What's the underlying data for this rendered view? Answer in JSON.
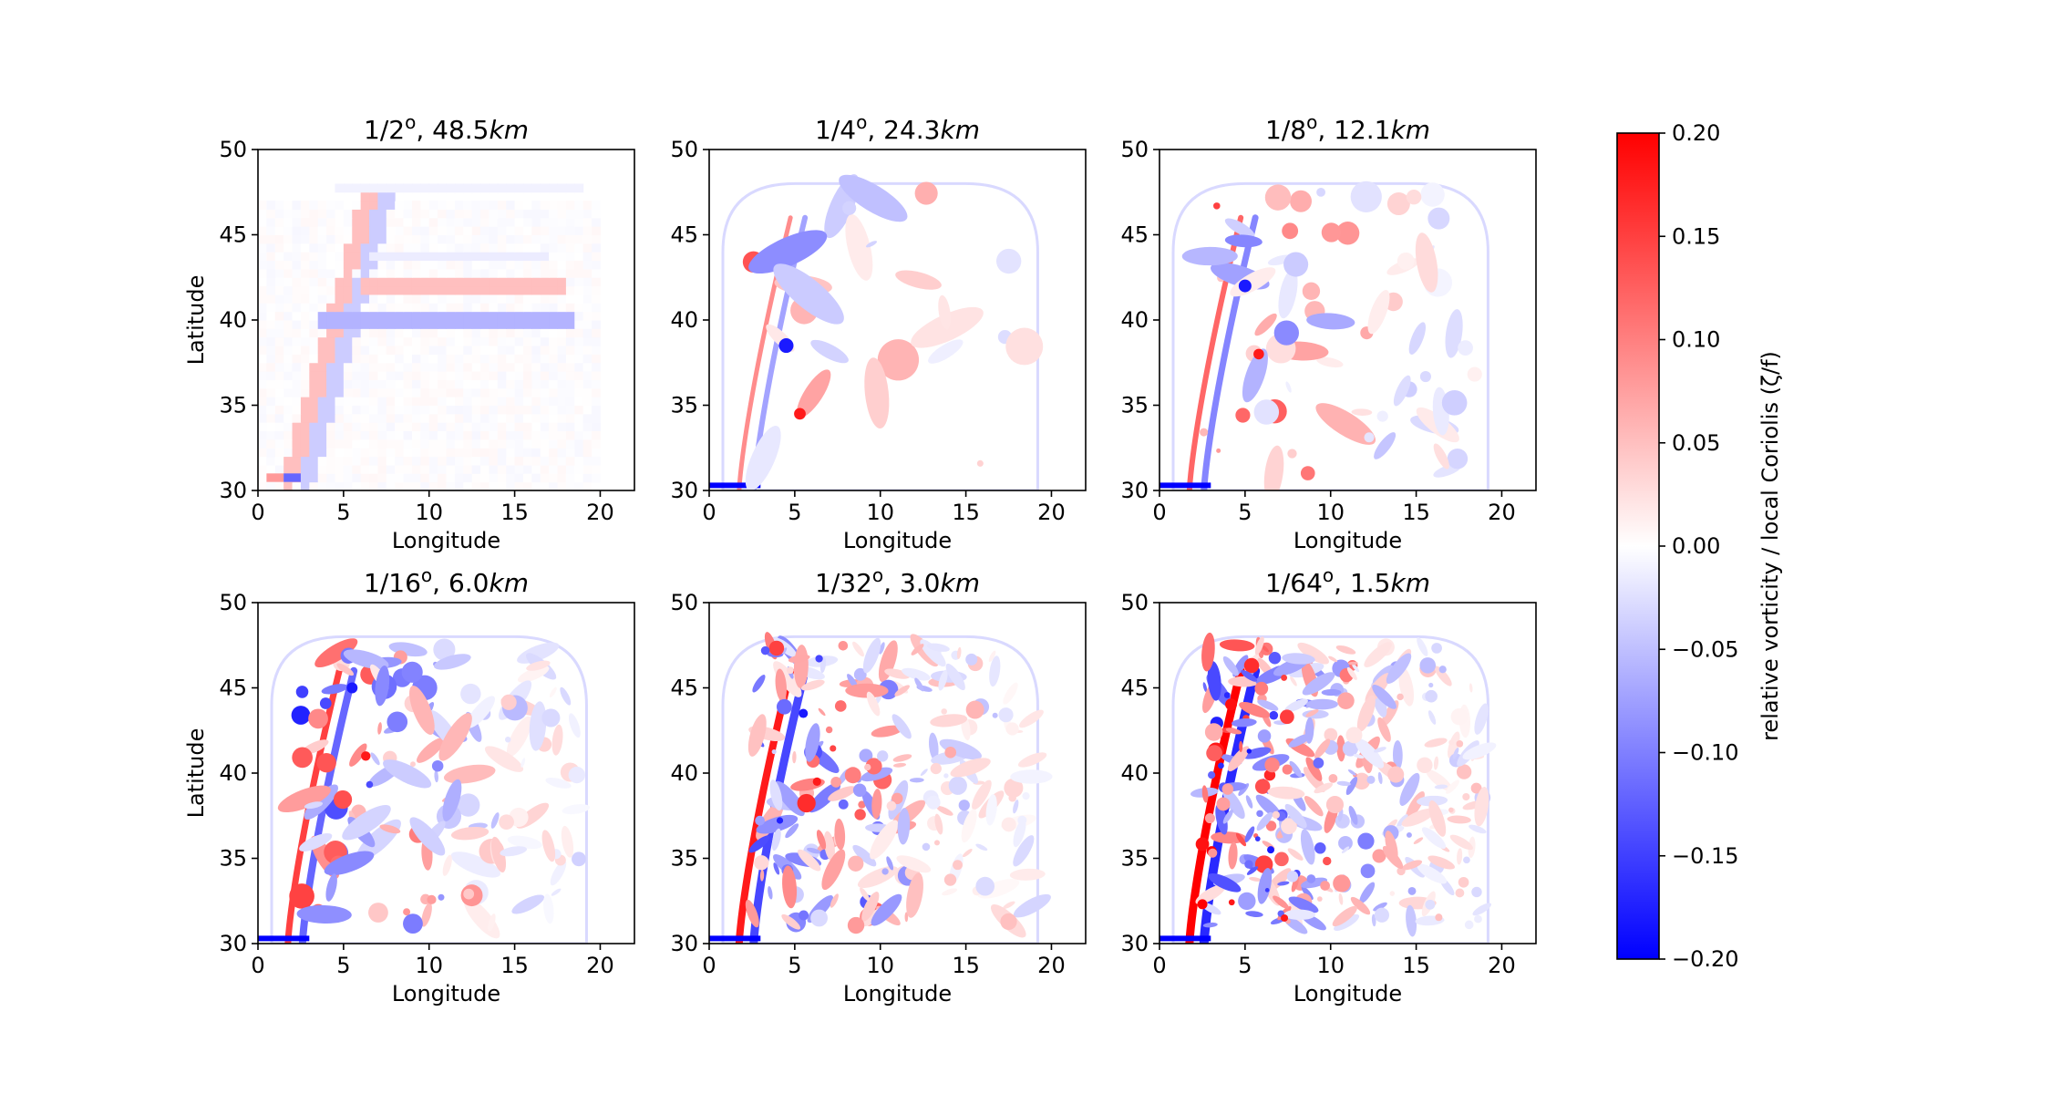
{
  "chart_data": {
    "type": "heatmap",
    "colormap": "bwr",
    "panels": [
      {
        "label_frac": "1/2",
        "label_sup": "o",
        "label_rest": ", 48.5",
        "label_unit": "km",
        "resolution_deg": 0.5,
        "resolution_km": 48.5,
        "detail": 0
      },
      {
        "label_frac": "1/4",
        "label_sup": "o",
        "label_rest": ", 24.3",
        "label_unit": "km",
        "resolution_deg": 0.25,
        "resolution_km": 24.3,
        "detail": 1
      },
      {
        "label_frac": "1/8",
        "label_sup": "o",
        "label_rest": ", 12.1",
        "label_unit": "km",
        "resolution_deg": 0.125,
        "resolution_km": 12.1,
        "detail": 2
      },
      {
        "label_frac": "1/16",
        "label_sup": "o",
        "label_rest": ", 6.0",
        "label_unit": "km",
        "resolution_deg": 0.0625,
        "resolution_km": 6.0,
        "detail": 3
      },
      {
        "label_frac": "1/32",
        "label_sup": "o",
        "label_rest": ", 3.0",
        "label_unit": "km",
        "resolution_deg": 0.03125,
        "resolution_km": 3.0,
        "detail": 4
      },
      {
        "label_frac": "1/64",
        "label_sup": "o",
        "label_rest": ", 1.5",
        "label_unit": "km",
        "resolution_deg": 0.015625,
        "resolution_km": 1.5,
        "detail": 5
      }
    ],
    "xlabel": "Longitude",
    "ylabel": "Latitude",
    "xlim": [
      0,
      22
    ],
    "ylim": [
      30,
      50
    ],
    "xticks": [
      "0",
      "5",
      "10",
      "15",
      "20"
    ],
    "yticks": [
      "30",
      "35",
      "40",
      "45",
      "50"
    ],
    "colorbar": {
      "label": "relative vorticity / local Coriolis (ζ/f)",
      "vmin": -0.2,
      "vmax": 0.2,
      "ticks": [
        "0.20",
        "0.15",
        "0.10",
        "0.05",
        "0.00",
        "−0.05",
        "−0.10",
        "−0.15",
        "−0.20"
      ],
      "color_max": "#ff0000",
      "color_mid": "#ffffff",
      "color_min": "#0000ff"
    }
  }
}
